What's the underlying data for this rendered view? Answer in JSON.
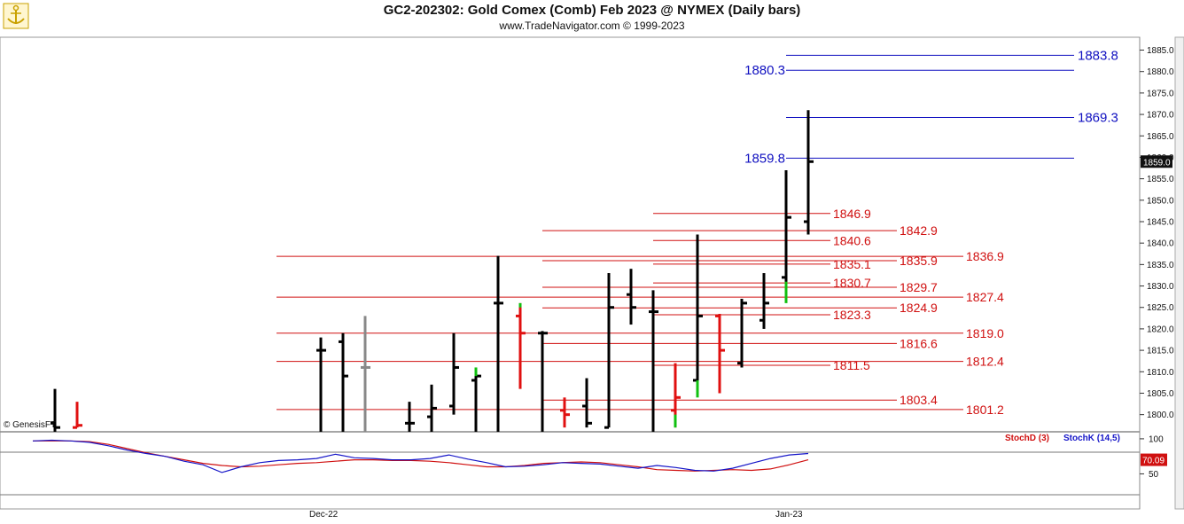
{
  "header": {
    "title": "GC2-202302:  Gold Comex (Comb) Feb 2023 @ NYMEX  (Daily bars)",
    "subtitle": "www.TradeNavigator.com © 1999-2023",
    "logo": "anchor-logo-icon"
  },
  "credit": "© GenesisFT",
  "chart_data": [
    {
      "type": "bar",
      "subtype": "ohlc",
      "ylim": [
        1796,
        1888
      ],
      "yticks": [
        "1885.0",
        "1880.0",
        "1875.0",
        "1870.0",
        "1865.0",
        "1860.0",
        "1855.0",
        "1850.0",
        "1845.0",
        "1840.0",
        "1835.0",
        "1830.0",
        "1825.0",
        "1820.0",
        "1815.0",
        "1810.0",
        "1805.0",
        "1800.0"
      ],
      "last_price": "1859.0",
      "x_labels": [
        "Dec-22",
        "Jan-23"
      ],
      "colors": {
        "up": "#000000",
        "down": "#000000",
        "red": "#e01010",
        "green": "#10c010",
        "gray": "#888888",
        "blue_level": "#1010c0",
        "red_level": "#d01010"
      },
      "bars": [
        {
          "o": 1798,
          "h": 1806,
          "l": 1796,
          "c": 1797,
          "color": "#000000"
        },
        {
          "o": 1797,
          "h": 1803,
          "l": 1797,
          "c": 1797.5,
          "color": "#e01010"
        },
        {
          "o": 1815,
          "h": 1818,
          "l": 1796,
          "c": 1815,
          "color": "#000000"
        },
        {
          "o": 1817,
          "h": 1819,
          "l": 1796,
          "c": 1809,
          "color": "#000000"
        },
        {
          "o": 1811,
          "h": 1823,
          "l": 1796,
          "c": 1811,
          "color": "#888888"
        },
        {
          "o": 1798,
          "h": 1803,
          "l": 1796,
          "c": 1798,
          "color": "#000000"
        },
        {
          "o": 1799.5,
          "h": 1807,
          "l": 1796,
          "c": 1801.5,
          "color": "#000000"
        },
        {
          "o": 1802,
          "h": 1819,
          "l": 1800,
          "c": 1811,
          "color": "#000000"
        },
        {
          "o": 1808,
          "h": 1811,
          "l": 1796,
          "c": 1809,
          "color": "#000000"
        },
        {
          "o": 1826,
          "h": 1837,
          "l": 1796,
          "c": 1826,
          "color": "#000000"
        },
        {
          "o": 1823,
          "h": 1826,
          "l": 1806,
          "c": 1819,
          "color": "#e01010"
        },
        {
          "o": 1819,
          "h": 1819.5,
          "l": 1796,
          "c": 1819,
          "color": "#000000"
        },
        {
          "o": 1801,
          "h": 1804,
          "l": 1797,
          "c": 1800,
          "color": "#e01010"
        },
        {
          "o": 1802,
          "h": 1808.5,
          "l": 1797,
          "c": 1798,
          "color": "#000000"
        },
        {
          "o": 1797,
          "h": 1833,
          "l": 1797,
          "c": 1825,
          "color": "#000000"
        },
        {
          "o": 1828,
          "h": 1834,
          "l": 1821,
          "c": 1825,
          "color": "#000000"
        },
        {
          "o": 1824,
          "h": 1829,
          "l": 1796,
          "c": 1824,
          "color": "#000000"
        },
        {
          "o": 1801,
          "h": 1812,
          "l": 1797,
          "c": 1804,
          "color": "#e01010"
        },
        {
          "o": 1808,
          "h": 1842,
          "l": 1805,
          "c": 1823,
          "color": "#000000"
        },
        {
          "o": 1823,
          "h": 1823.5,
          "l": 1805,
          "c": 1815,
          "color": "#e01010"
        },
        {
          "o": 1812,
          "h": 1827,
          "l": 1811,
          "c": 1826,
          "color": "#000000"
        },
        {
          "o": 1822,
          "h": 1833,
          "l": 1820,
          "c": 1826,
          "color": "#000000"
        },
        {
          "o": 1832,
          "h": 1857,
          "l": 1827,
          "c": 1846,
          "color": "#000000"
        },
        {
          "o": 1845,
          "h": 1871,
          "l": 1842,
          "c": 1859,
          "color": "#000000"
        }
      ],
      "levels": [
        {
          "value": "1883.8",
          "color": "#1010c0"
        },
        {
          "value": "1880.3",
          "color": "#1010c0"
        },
        {
          "value": "1869.3",
          "color": "#1010c0"
        },
        {
          "value": "1859.8",
          "color": "#1010c0"
        },
        {
          "value": "1846.9",
          "color": "#d01010"
        },
        {
          "value": "1842.9",
          "color": "#d01010"
        },
        {
          "value": "1840.6",
          "color": "#d01010"
        },
        {
          "value": "1836.9",
          "color": "#d01010"
        },
        {
          "value": "1835.9",
          "color": "#d01010"
        },
        {
          "value": "1835.1",
          "color": "#d01010"
        },
        {
          "value": "1830.7",
          "color": "#d01010"
        },
        {
          "value": "1829.7",
          "color": "#d01010"
        },
        {
          "value": "1827.4",
          "color": "#d01010"
        },
        {
          "value": "1824.9",
          "color": "#d01010"
        },
        {
          "value": "1823.3",
          "color": "#d01010"
        },
        {
          "value": "1819.0",
          "color": "#d01010"
        },
        {
          "value": "1816.6",
          "color": "#d01010"
        },
        {
          "value": "1812.4",
          "color": "#d01010"
        },
        {
          "value": "1811.5",
          "color": "#d01010"
        },
        {
          "value": "1803.4",
          "color": "#d01010"
        },
        {
          "value": "1801.2",
          "color": "#d01010"
        }
      ]
    },
    {
      "type": "line",
      "ylim": [
        0,
        110
      ],
      "yticks": [
        "100",
        "50"
      ],
      "last_value": "70.09",
      "series": [
        {
          "name": "StochD (3)",
          "color": "#d01010",
          "values": [
            97,
            97,
            97,
            96,
            92,
            86,
            80,
            75,
            70,
            65,
            62,
            60,
            61,
            63,
            65,
            66,
            68,
            70,
            70,
            69,
            69,
            68,
            66,
            63,
            60,
            60,
            62,
            65,
            66,
            67,
            66,
            63,
            60,
            56,
            55,
            54,
            55,
            56,
            55,
            57,
            63,
            70
          ]
        },
        {
          "name": "StochK (14,5)",
          "color": "#1515c8",
          "values": [
            97,
            98,
            97,
            95,
            90,
            84,
            79,
            75,
            68,
            63,
            52,
            60,
            66,
            69,
            70,
            72,
            78,
            73,
            72,
            70,
            70,
            72,
            77,
            71,
            66,
            60,
            61,
            63,
            66,
            65,
            64,
            61,
            58,
            62,
            59,
            55,
            54,
            58,
            65,
            72,
            77,
            79
          ]
        }
      ]
    }
  ]
}
